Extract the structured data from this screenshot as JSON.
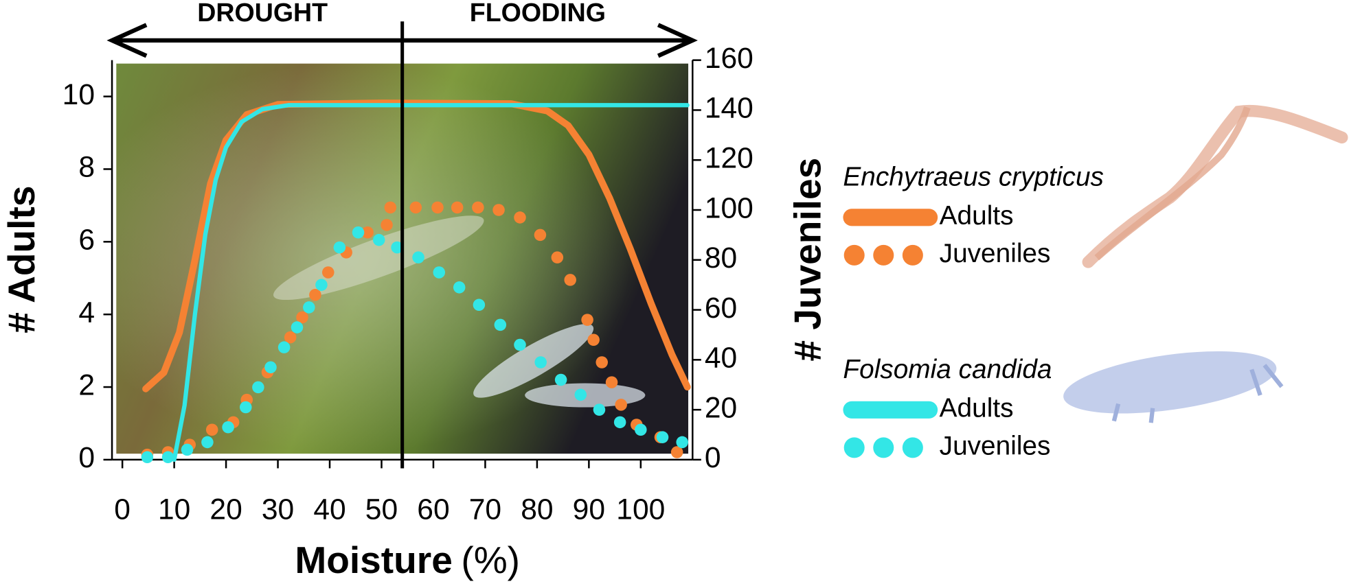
{
  "chart_data": {
    "type": "line",
    "xlabel": [
      "Moisture",
      "(%)"
    ],
    "ylabel": "# Adults",
    "y2label": "# Juveniles",
    "annotations": {
      "left": "DROUGHT",
      "right": "FLOODING",
      "divider": 54
    },
    "xlim": [
      -2,
      110
    ],
    "xticks": [
      0,
      10,
      20,
      30,
      40,
      50,
      60,
      70,
      80,
      90,
      100
    ],
    "ylim": [
      0,
      11
    ],
    "yticks": [
      0,
      2,
      4,
      6,
      8,
      10
    ],
    "y2lim": [
      0,
      160
    ],
    "y2ticks": [
      0,
      20,
      40,
      60,
      80,
      100,
      120,
      140,
      160
    ],
    "groups": [
      {
        "name": "Enchytraeus crypticus",
        "series": [
          {
            "name": "Adults",
            "style": "solid",
            "color": "#f58233",
            "axis": "y",
            "x": [
              4.5,
              8,
              11,
              14,
              17,
              20,
              24,
              30,
              50,
              75,
              82,
              86,
              90,
              94,
              98,
              102,
              106,
              109
            ],
            "values": [
              1.95,
              2.4,
              3.5,
              5.5,
              7.6,
              8.8,
              9.5,
              9.78,
              9.82,
              9.8,
              9.6,
              9.2,
              8.4,
              7.2,
              5.8,
              4.3,
              2.9,
              2.0
            ]
          },
          {
            "name": "Juveniles",
            "style": "dotted",
            "color": "#f58233",
            "axis": "y2",
            "x": [
              4.8,
              8.8,
              13,
              17.3,
              21.4,
              24,
              28,
              32.4,
              34.7,
              37.2,
              39.7,
              43.2,
              47.3,
              51,
              51.7,
              56.6,
              60.8,
              64.6,
              68.6,
              72.6,
              76.7,
              80.6,
              83.9,
              86.4,
              89.7,
              90.9,
              92.5,
              94.4,
              96.2,
              99.2,
              103.8,
              107
            ],
            "values": [
              2,
              3,
              6,
              12,
              15,
              24,
              35,
              49,
              57,
              66,
              75,
              83,
              91,
              94,
              101,
              101,
              101,
              101,
              101,
              100,
              97,
              90,
              81,
              72,
              56,
              48,
              39,
              31,
              22,
              14,
              9,
              3
            ]
          }
        ]
      },
      {
        "name": "Folsomia candida",
        "series": [
          {
            "name": "Adults",
            "style": "solid",
            "color": "#33e6e6",
            "axis": "y",
            "x": [
              10,
              12,
              14,
              16,
              18,
              20,
              23,
              27,
              32,
              109
            ],
            "values": [
              0,
              1.5,
              4,
              6.2,
              7.7,
              8.6,
              9.3,
              9.65,
              9.76,
              9.76
            ]
          },
          {
            "name": "Juveniles",
            "style": "dotted",
            "color": "#33e6e6",
            "axis": "y2",
            "x": [
              4.8,
              8.8,
              12.5,
              16.4,
              20.4,
              23.8,
              26.2,
              28.6,
              31.2,
              33.7,
              36,
              38.4,
              41.9,
              45.5,
              49.5,
              53,
              57.1,
              61.1,
              65,
              68.8,
              72.9,
              76.7,
              80.7,
              84.6,
              88.4,
              92,
              96,
              100,
              104.2,
              108
            ],
            "values": [
              1,
              1,
              4,
              7,
              13,
              21,
              29,
              37,
              45,
              53,
              61,
              70,
              85,
              91,
              88,
              85,
              81,
              75,
              69,
              62,
              54,
              46,
              39,
              32,
              26,
              20,
              15,
              12,
              9,
              7
            ]
          }
        ]
      }
    ]
  }
}
